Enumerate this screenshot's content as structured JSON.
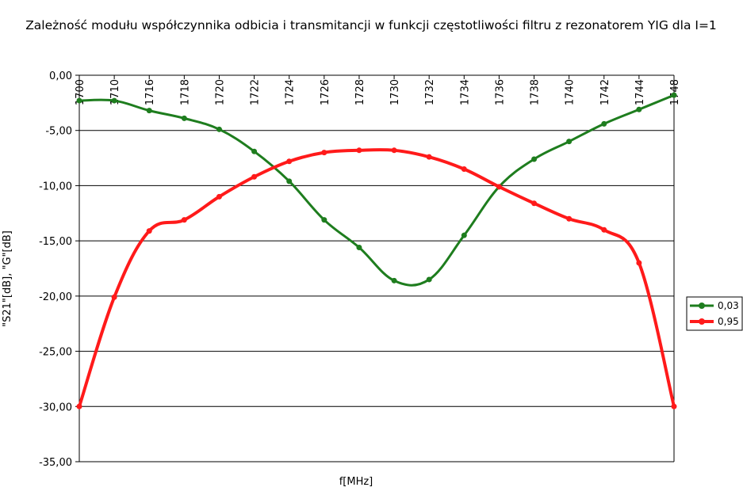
{
  "chart_data": {
    "type": "line",
    "title": "Zależność modułu współczynnika odbicia i transmitancji w funkcji częstotliwości filtru z rezonatorem YIG dla I=1",
    "xlabel": "f[MHz]",
    "ylabel": "\"S21\"[dB], \"G\"[dB]",
    "ylim": [
      -35,
      0
    ],
    "yticks": [
      0,
      -5,
      -10,
      -15,
      -20,
      -25,
      -30,
      -35
    ],
    "ytick_labels": [
      "0,00",
      "-5,00",
      "-10,00",
      "-15,00",
      "-20,00",
      "-25,00",
      "-30,00",
      "-35,00"
    ],
    "categories": [
      "1700",
      "1710",
      "1716",
      "1718",
      "1720",
      "1722",
      "1724",
      "1726",
      "1728",
      "1730",
      "1732",
      "1734",
      "1736",
      "1738",
      "1740",
      "1742",
      "1744",
      "1748"
    ],
    "grid": true,
    "legend_position": "right",
    "series": [
      {
        "name": "0,03",
        "color": "#1e7d1e",
        "values": [
          -2.3,
          -2.3,
          -3.2,
          -3.9,
          -4.9,
          -6.9,
          -9.6,
          -13.1,
          -15.6,
          -18.6,
          -18.5,
          -14.5,
          -10.1,
          -7.6,
          -6.0,
          -4.4,
          -3.1,
          -1.8
        ]
      },
      {
        "name": "0,95",
        "color": "#ff1a1a",
        "values": [
          -30.0,
          -20.1,
          -14.1,
          -13.1,
          -11.0,
          -9.2,
          -7.8,
          -7.0,
          -6.8,
          -6.8,
          -7.4,
          -8.5,
          -10.1,
          -11.6,
          -13.0,
          -14.0,
          -17.0,
          -30.0
        ]
      }
    ]
  }
}
